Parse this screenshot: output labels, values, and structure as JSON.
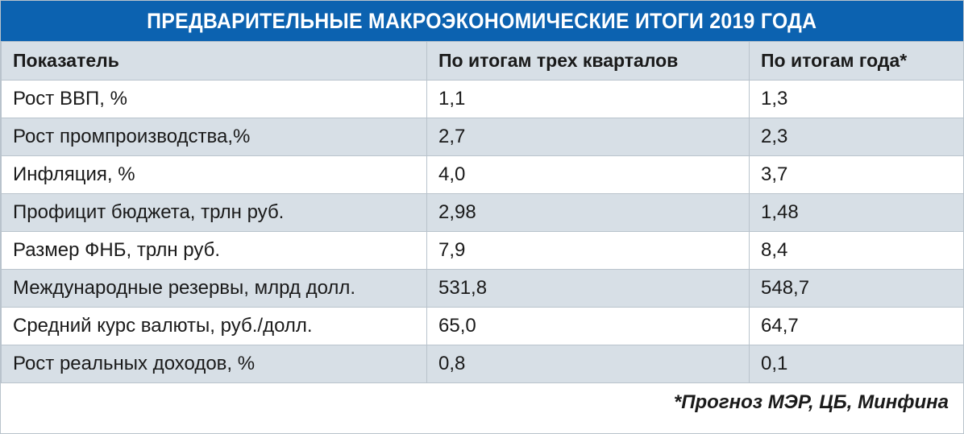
{
  "title": "ПРЕДВАРИТЕЛЬНЫЕ МАКРОЭКОНОМИЧЕСКИЕ ИТОГИ 2019 ГОДА",
  "colors": {
    "title_bg": "#0c62b0",
    "row_alt_bg": "#d7dfe6",
    "border": "#b9c3cc"
  },
  "table": {
    "headers": [
      "Показатель",
      "По итогам трех кварталов",
      "По итогам года*"
    ],
    "rows": [
      [
        "Рост ВВП, %",
        "1,1",
        "1,3"
      ],
      [
        "Рост промпроизводства,%",
        "2,7",
        "2,3"
      ],
      [
        "Инфляция, %",
        "4,0",
        "3,7"
      ],
      [
        "Профицит бюджета, трлн руб.",
        "2,98",
        "1,48"
      ],
      [
        "Размер ФНБ, трлн руб.",
        "7,9",
        "8,4"
      ],
      [
        "Международные резервы, млрд долл.",
        "531,8",
        "548,7"
      ],
      [
        "Средний курс валюты, руб./долл.",
        "65,0",
        "64,7"
      ],
      [
        "Рост реальных доходов, %",
        "0,8",
        "0,1"
      ]
    ]
  },
  "footnote": "*Прогноз МЭР, ЦБ, Минфина"
}
